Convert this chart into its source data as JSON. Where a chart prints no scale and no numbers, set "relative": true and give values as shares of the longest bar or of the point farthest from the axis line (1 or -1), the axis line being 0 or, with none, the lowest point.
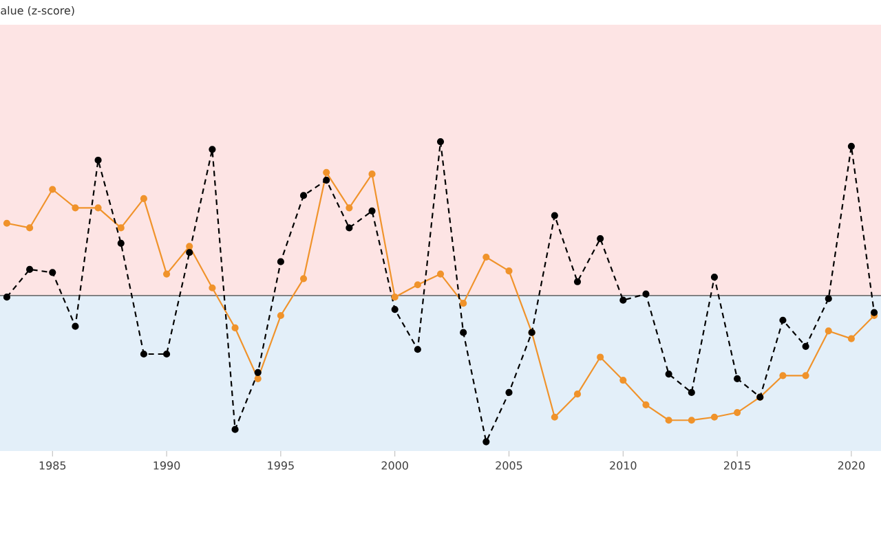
{
  "chart_data": {
    "type": "line",
    "annotations": [
      "alue (z-score)"
    ],
    "relative": true,
    "marker": "circle",
    "x": [
      1983,
      1984,
      1985,
      1986,
      1987,
      1988,
      1989,
      1990,
      1991,
      1992,
      1993,
      1994,
      1995,
      1996,
      1997,
      1998,
      1999,
      2000,
      2001,
      2002,
      2003,
      2004,
      2005,
      2006,
      2007,
      2008,
      2009,
      2010,
      2011,
      2012,
      2013,
      2014,
      2015,
      2016,
      2017,
      2018,
      2019,
      2020,
      2021
    ],
    "series": [
      {
        "color": "#f0932b",
        "line_style": "solid",
        "values": [
          0.47,
          0.44,
          0.69,
          0.57,
          0.57,
          0.44,
          0.63,
          0.14,
          0.32,
          0.05,
          -0.21,
          -0.54,
          -0.13,
          0.11,
          0.8,
          0.57,
          0.79,
          -0.01,
          0.07,
          0.14,
          -0.05,
          0.25,
          0.16,
          -0.24,
          -0.79,
          -0.64,
          -0.4,
          -0.55,
          -0.71,
          -0.81,
          -0.81,
          -0.79,
          -0.76,
          -0.66,
          -0.52,
          -0.52,
          -0.23,
          -0.28,
          -0.13
        ]
      },
      {
        "color": "#000000",
        "line_style": "dashed",
        "values": [
          -0.01,
          0.17,
          0.15,
          -0.2,
          0.88,
          0.34,
          -0.38,
          -0.38,
          0.28,
          0.95,
          -0.87,
          -0.5,
          0.22,
          0.65,
          0.75,
          0.44,
          0.55,
          -0.09,
          -0.35,
          1.0,
          -0.24,
          -0.95,
          -0.63,
          -0.24,
          0.52,
          0.09,
          0.37,
          -0.03,
          0.01,
          -0.51,
          -0.63,
          0.12,
          -0.54,
          -0.66,
          -0.16,
          -0.33,
          -0.02,
          0.97,
          -0.11
        ]
      }
    ],
    "xlim": [
      1982.7,
      2021.3
    ],
    "xticks": [
      1985,
      1990,
      1995,
      2000,
      2005,
      2010,
      2015,
      2020
    ],
    "bands": [
      {
        "axis": "y",
        "from": 0,
        "to": 1.76,
        "color": "#fde4e4"
      },
      {
        "axis": "y",
        "from": -1.01,
        "to": 0,
        "color": "#e3eff9"
      }
    ]
  }
}
